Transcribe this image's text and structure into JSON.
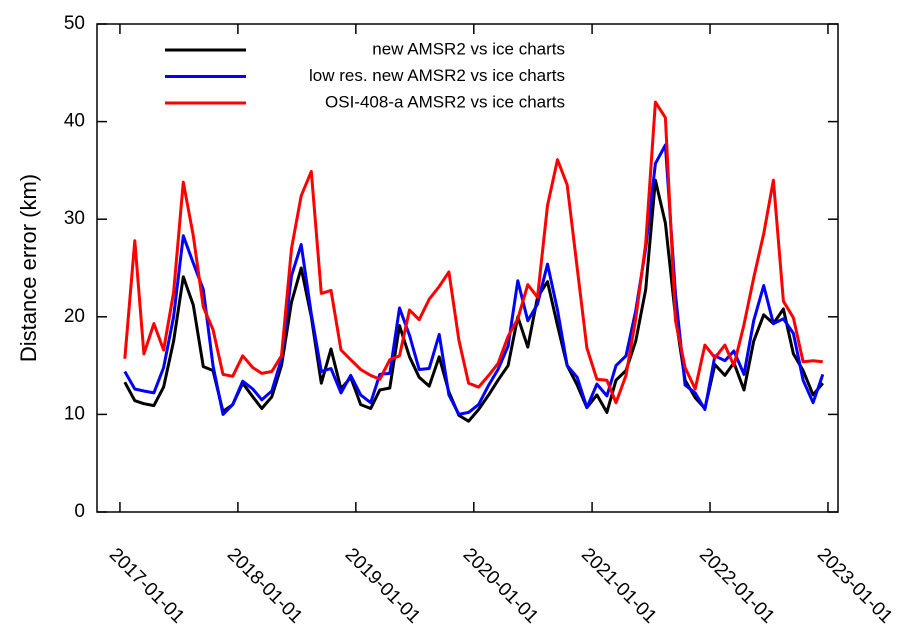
{
  "chart_data": {
    "type": "line",
    "y_label": "Distance error (km)",
    "x": [
      "2017-01-16",
      "2017-02-16",
      "2017-03-16",
      "2017-04-16",
      "2017-05-16",
      "2017-06-16",
      "2017-07-16",
      "2017-08-16",
      "2017-09-16",
      "2017-10-16",
      "2017-11-16",
      "2017-12-16",
      "2018-01-16",
      "2018-02-16",
      "2018-03-16",
      "2018-04-16",
      "2018-05-16",
      "2018-06-16",
      "2018-07-16",
      "2018-08-16",
      "2018-09-16",
      "2018-10-16",
      "2018-11-16",
      "2018-12-16",
      "2019-01-16",
      "2019-02-16",
      "2019-03-16",
      "2019-04-16",
      "2019-05-16",
      "2019-06-16",
      "2019-07-16",
      "2019-08-16",
      "2019-09-16",
      "2019-10-16",
      "2019-11-16",
      "2019-12-16",
      "2020-01-16",
      "2020-02-16",
      "2020-03-16",
      "2020-04-16",
      "2020-05-16",
      "2020-06-16",
      "2020-07-16",
      "2020-08-16",
      "2020-09-16",
      "2020-10-16",
      "2020-11-16",
      "2020-12-16",
      "2021-01-16",
      "2021-02-16",
      "2021-03-16",
      "2021-04-16",
      "2021-05-16",
      "2021-06-16",
      "2021-07-16",
      "2021-08-16",
      "2021-09-16",
      "2021-10-16",
      "2021-11-16",
      "2021-12-16",
      "2022-01-16",
      "2022-02-16",
      "2022-03-16",
      "2022-04-16",
      "2022-05-16",
      "2022-06-16",
      "2022-07-16",
      "2022-08-16",
      "2022-09-16",
      "2022-10-16",
      "2022-11-16",
      "2022-12-16"
    ],
    "series": [
      {
        "name": "new AMSR2 vs ice charts",
        "color": "#000000",
        "values": [
          13.3,
          11.4,
          11.1,
          10.9,
          12.8,
          17.5,
          24.1,
          21.2,
          14.9,
          14.5,
          10.3,
          11.0,
          13.2,
          11.8,
          10.6,
          11.8,
          15.0,
          21.5,
          25.0,
          20.0,
          13.2,
          16.7,
          12.6,
          13.8,
          11.0,
          10.6,
          12.5,
          12.7,
          19.1,
          15.9,
          13.8,
          12.9,
          15.9,
          12.3,
          9.9,
          9.3,
          10.5,
          12.0,
          13.5,
          15.0,
          20.0,
          16.9,
          22.0,
          23.6,
          19.1,
          15.0,
          13.0,
          10.7,
          12.0,
          10.2,
          13.5,
          14.5,
          17.5,
          22.8,
          34.0,
          29.6,
          20.0,
          13.5,
          11.7,
          10.6,
          15.1,
          14.0,
          15.3,
          12.5,
          17.5,
          20.2,
          19.3,
          20.8,
          16.2,
          14.5,
          12.0,
          13.2
        ]
      },
      {
        "name": "low res. new AMSR2 vs ice charts",
        "color": "#0000ff",
        "values": [
          14.4,
          12.6,
          12.4,
          12.2,
          14.8,
          20.0,
          28.3,
          25.5,
          22.8,
          15.0,
          10.0,
          11.0,
          13.4,
          12.6,
          11.5,
          12.4,
          15.7,
          24.2,
          27.4,
          20.3,
          14.4,
          14.7,
          12.2,
          14.0,
          12.0,
          11.2,
          14.1,
          14.2,
          20.9,
          18.1,
          14.6,
          14.7,
          18.2,
          12.0,
          10.0,
          10.2,
          11.0,
          13.0,
          14.6,
          17.0,
          23.7,
          19.6,
          21.3,
          25.4,
          20.7,
          15.0,
          13.8,
          10.7,
          13.1,
          11.9,
          15.0,
          16.0,
          20.6,
          27.0,
          35.7,
          37.6,
          22.3,
          13.0,
          12.2,
          10.5,
          16.0,
          15.5,
          16.5,
          14.1,
          19.6,
          23.2,
          19.3,
          19.8,
          18.3,
          13.5,
          11.2,
          14.1
        ]
      },
      {
        "name": "OSI-408-a AMSR2 vs ice charts",
        "color": "#ff0000",
        "values": [
          15.7,
          27.8,
          16.2,
          19.3,
          16.6,
          22.5,
          33.8,
          28.3,
          21.0,
          18.7,
          14.1,
          13.9,
          16.0,
          14.8,
          14.2,
          14.4,
          16.0,
          27.0,
          32.4,
          34.9,
          22.4,
          22.7,
          16.6,
          15.6,
          14.6,
          14.0,
          13.6,
          15.6,
          16.0,
          20.7,
          19.7,
          21.8,
          23.1,
          24.6,
          17.6,
          13.2,
          12.8,
          14.0,
          15.2,
          18.0,
          19.8,
          23.3,
          22.0,
          31.4,
          36.1,
          33.5,
          25.0,
          16.8,
          13.6,
          13.5,
          11.2,
          14.0,
          19.8,
          27.5,
          42.0,
          40.4,
          19.6,
          14.8,
          12.6,
          17.1,
          15.8,
          17.1,
          15.0,
          19.2,
          24.0,
          28.5,
          34.0,
          21.6,
          19.9,
          15.4,
          15.5,
          15.4
        ]
      }
    ],
    "xlim": [
      "2016-10-22",
      "2023-02-01"
    ],
    "xticks": [
      "2017-01-01",
      "2018-01-01",
      "2019-01-01",
      "2020-01-01",
      "2021-01-01",
      "2022-01-01",
      "2023-01-01"
    ],
    "ylim": [
      0,
      50
    ],
    "yticks": [
      0,
      10,
      20,
      30,
      40,
      50
    ],
    "legend": "upper left"
  }
}
